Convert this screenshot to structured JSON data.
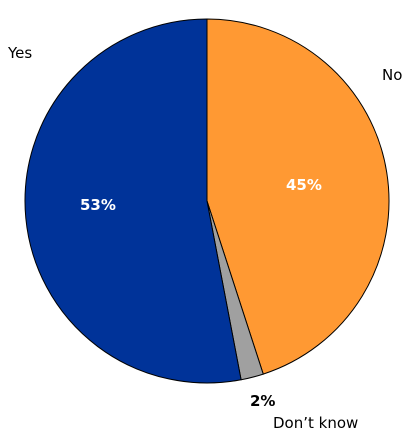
{
  "chart_data": {
    "type": "pie",
    "categories": [
      "No",
      "Don’t know",
      "Yes"
    ],
    "values": [
      45,
      2,
      53
    ],
    "value_labels": [
      "45%",
      "2%",
      "53%"
    ],
    "colors": [
      "#FF9933",
      "#A0A0A0",
      "#003399"
    ],
    "start": "12 o'clock",
    "direction": "clockwise",
    "legend": "none"
  }
}
